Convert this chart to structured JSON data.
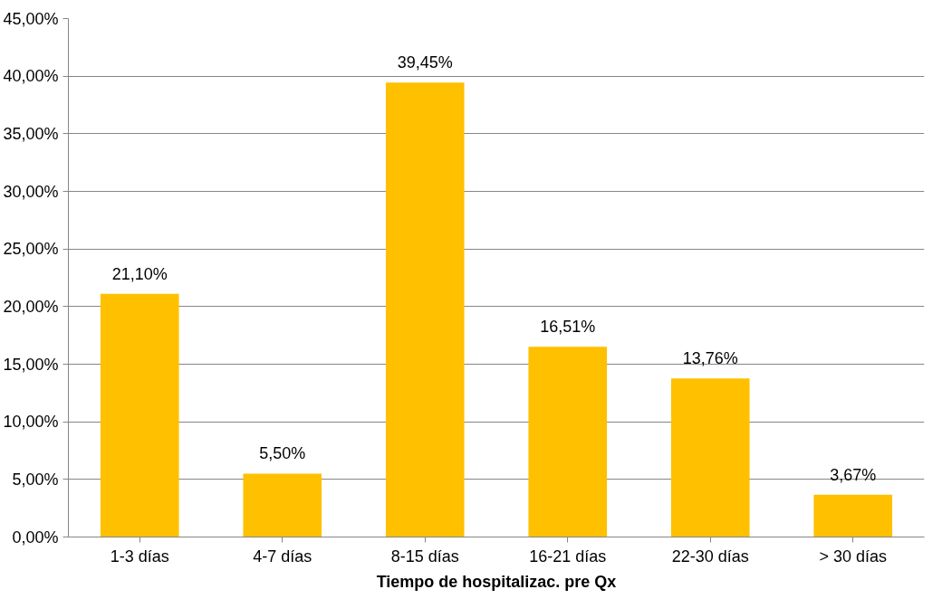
{
  "chart_data": {
    "type": "bar",
    "xlabel": "Tiempo de hospitalizac. pre Qx",
    "categories": [
      "1-3 días",
      "4-7 días",
      "8-15 días",
      "16-21 días",
      "22-30 días",
      "> 30 días"
    ],
    "values": [
      21.1,
      5.5,
      39.45,
      16.51,
      13.76,
      3.67
    ],
    "value_labels": [
      "21,10%",
      "5,50%",
      "39,45%",
      "16,51%",
      "13,76%",
      "3,67%"
    ],
    "color": "#ffc000",
    "ylim": [
      0,
      45
    ],
    "yticks": [
      {
        "value": 0,
        "label": "0,00%"
      },
      {
        "value": 5,
        "label": "5,00%"
      },
      {
        "value": 10,
        "label": "10,00%"
      },
      {
        "value": 15,
        "label": "15,00%"
      },
      {
        "value": 20,
        "label": "20,00%"
      },
      {
        "value": 25,
        "label": "25,00%"
      },
      {
        "value": 30,
        "label": "30,00%"
      },
      {
        "value": 35,
        "label": "35,00%"
      },
      {
        "value": 40,
        "label": "40,00%"
      },
      {
        "value": 45,
        "label": "45,00%"
      }
    ],
    "grid": "y"
  }
}
